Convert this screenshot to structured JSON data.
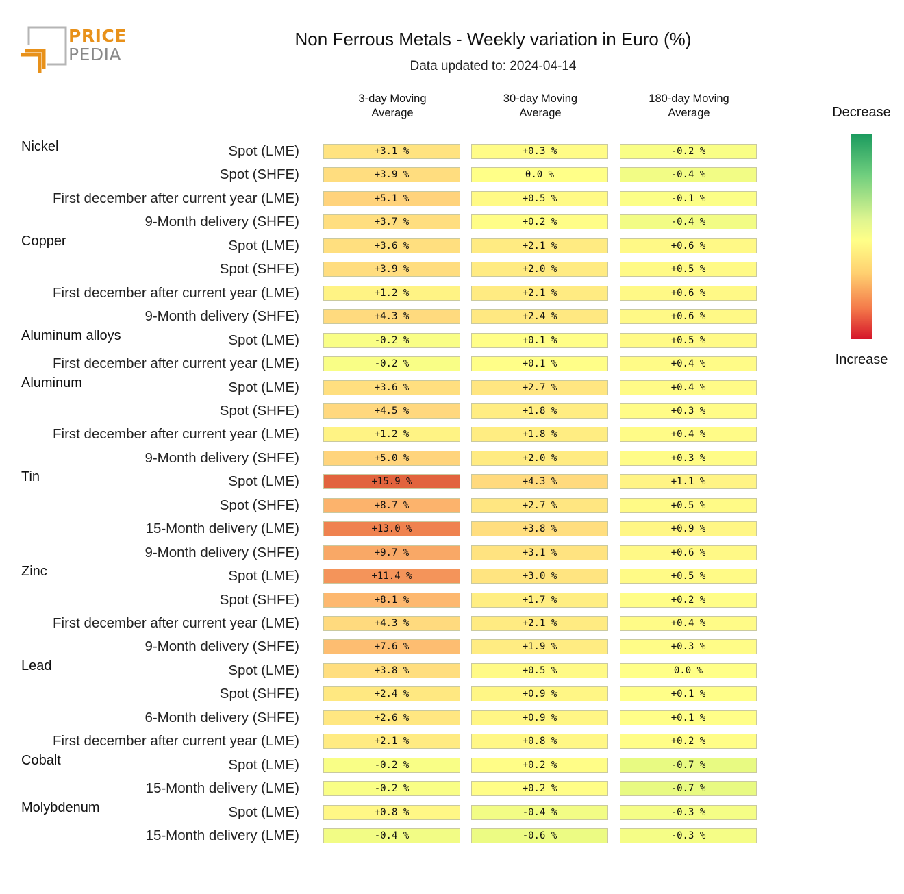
{
  "logo": {
    "line1": "PRICE",
    "line2": "PEDIA"
  },
  "title": "Non Ferrous Metals - Weekly variation in Euro (%)",
  "subtitle": "Data updated to: 2024-04-14",
  "legend": {
    "top": "Decrease",
    "bottom": "Increase"
  },
  "chart_data": {
    "type": "heatmap",
    "title": "Non Ferrous Metals - Weekly variation in Euro (%)",
    "subtitle": "Data updated to: 2024-04-14",
    "columns": [
      {
        "line1": "3-day Moving",
        "line2": "Average"
      },
      {
        "line1": "30-day Moving",
        "line2": "Average"
      },
      {
        "line1": "180-day Moving",
        "line2": "Average"
      }
    ],
    "groups": [
      {
        "name": "Nickel",
        "rows": [
          {
            "label": "Spot (LME)",
            "values": [
              3.1,
              0.3,
              -0.2
            ]
          },
          {
            "label": "Spot (SHFE)",
            "values": [
              3.9,
              0.0,
              -0.4
            ]
          },
          {
            "label": "First december after current year (LME)",
            "values": [
              5.1,
              0.5,
              -0.1
            ]
          },
          {
            "label": "9-Month delivery (SHFE)",
            "values": [
              3.7,
              0.2,
              -0.4
            ]
          }
        ]
      },
      {
        "name": "Copper",
        "rows": [
          {
            "label": "Spot (LME)",
            "values": [
              3.6,
              2.1,
              0.6
            ]
          },
          {
            "label": "Spot (SHFE)",
            "values": [
              3.9,
              2.0,
              0.5
            ]
          },
          {
            "label": "First december after current year (LME)",
            "values": [
              1.2,
              2.1,
              0.6
            ]
          },
          {
            "label": "9-Month delivery (SHFE)",
            "values": [
              4.3,
              2.4,
              0.6
            ]
          }
        ]
      },
      {
        "name": "Aluminum alloys",
        "rows": [
          {
            "label": "Spot (LME)",
            "values": [
              -0.2,
              0.1,
              0.5
            ]
          },
          {
            "label": "First december after current year (LME)",
            "values": [
              -0.2,
              0.1,
              0.4
            ]
          }
        ]
      },
      {
        "name": "Aluminum",
        "rows": [
          {
            "label": "Spot (LME)",
            "values": [
              3.6,
              2.7,
              0.4
            ]
          },
          {
            "label": "Spot (SHFE)",
            "values": [
              4.5,
              1.8,
              0.3
            ]
          },
          {
            "label": "First december after current year (LME)",
            "values": [
              1.2,
              1.8,
              0.4
            ]
          },
          {
            "label": "9-Month delivery (SHFE)",
            "values": [
              5.0,
              2.0,
              0.3
            ]
          }
        ]
      },
      {
        "name": "Tin",
        "rows": [
          {
            "label": "Spot (LME)",
            "values": [
              15.9,
              4.3,
              1.1
            ]
          },
          {
            "label": "Spot (SHFE)",
            "values": [
              8.7,
              2.7,
              0.5
            ]
          },
          {
            "label": "15-Month delivery (LME)",
            "values": [
              13.0,
              3.8,
              0.9
            ]
          },
          {
            "label": "9-Month delivery (SHFE)",
            "values": [
              9.7,
              3.1,
              0.6
            ]
          }
        ]
      },
      {
        "name": "Zinc",
        "rows": [
          {
            "label": "Spot (LME)",
            "values": [
              11.4,
              3.0,
              0.5
            ]
          },
          {
            "label": "Spot (SHFE)",
            "values": [
              8.1,
              1.7,
              0.2
            ]
          },
          {
            "label": "First december after current year (LME)",
            "values": [
              4.3,
              2.1,
              0.4
            ]
          },
          {
            "label": "9-Month delivery (SHFE)",
            "values": [
              7.6,
              1.9,
              0.3
            ]
          }
        ]
      },
      {
        "name": "Lead",
        "rows": [
          {
            "label": "Spot (LME)",
            "values": [
              3.8,
              0.5,
              0.0
            ]
          },
          {
            "label": "Spot (SHFE)",
            "values": [
              2.4,
              0.9,
              0.1
            ]
          },
          {
            "label": "6-Month delivery (SHFE)",
            "values": [
              2.6,
              0.9,
              0.1
            ]
          },
          {
            "label": "First december after current year (LME)",
            "values": [
              2.1,
              0.8,
              0.2
            ]
          }
        ]
      },
      {
        "name": "Cobalt",
        "rows": [
          {
            "label": "Spot (LME)",
            "values": [
              -0.2,
              0.2,
              -0.7
            ]
          },
          {
            "label": "15-Month delivery (LME)",
            "values": [
              -0.2,
              0.2,
              -0.7
            ]
          }
        ]
      },
      {
        "name": "Molybdenum",
        "rows": [
          {
            "label": "Spot (LME)",
            "values": [
              0.8,
              -0.4,
              -0.3
            ]
          },
          {
            "label": "15-Month delivery (LME)",
            "values": [
              -0.4,
              -0.6,
              -0.3
            ]
          }
        ]
      }
    ]
  }
}
